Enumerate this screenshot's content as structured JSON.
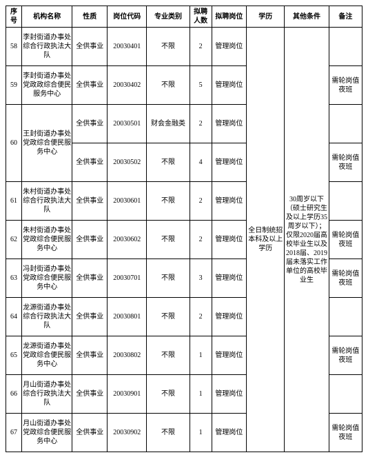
{
  "headers": {
    "seq": "序号",
    "org": "机构名称",
    "nature": "性质",
    "code": "岗位代码",
    "major": "专业类别",
    "num": "拟聘人数",
    "pos": "拟聘岗位",
    "edu": "学历",
    "other": "其他条件",
    "remark": "备注"
  },
  "edu_text": "全日制统招本科及以上学历",
  "other_text": "30周岁以下（硕士研究生及以上学历35周岁以下）；仅限2020届高校毕业生以及2018届、2019届未落实工作单位的高校毕业生",
  "rows": [
    {
      "seq": "58",
      "org": "李封街道办事处综合行政执法大队",
      "nature": "全供事业",
      "code": "20030401",
      "major": "不限",
      "num": "2",
      "pos": "管理岗位",
      "remark": ""
    },
    {
      "seq": "59",
      "org": "李封街道办事处党政政综合便民服务中心",
      "nature": "全供事业",
      "code": "20030402",
      "major": "不限",
      "num": "5",
      "pos": "管理岗位",
      "remark": "需轮岗值夜班"
    },
    {
      "seq": "60",
      "org": "王封街道办事处党政综合便民服务中心",
      "nature": "全供事业",
      "code": "20030501",
      "major": "财会金融类",
      "num": "2",
      "pos": "管理岗位",
      "remark": "",
      "merge_seq": true,
      "merge_org": true
    },
    {
      "seq": "",
      "org": "",
      "nature": "全供事业",
      "code": "20030502",
      "major": "不限",
      "num": "4",
      "pos": "管理岗位",
      "remark": "需轮岗值夜班"
    },
    {
      "seq": "61",
      "org": "朱村街道办事处综合行政执法大队",
      "nature": "全供事业",
      "code": "20030601",
      "major": "不限",
      "num": "2",
      "pos": "管理岗位",
      "remark": ""
    },
    {
      "seq": "62",
      "org": "朱村街道办事处党政综合便民服务中心",
      "nature": "全供事业",
      "code": "20030602",
      "major": "不限",
      "num": "2",
      "pos": "管理岗位",
      "remark": "需轮岗值夜班"
    },
    {
      "seq": "63",
      "org": "冯封街道办事处党政综合便民服务中心",
      "nature": "全供事业",
      "code": "20030701",
      "major": "不限",
      "num": "3",
      "pos": "管理岗位",
      "remark": "需轮岗值夜班"
    },
    {
      "seq": "64",
      "org": "龙源街道办事处综合行政执法大队",
      "nature": "全供事业",
      "code": "20030801",
      "major": "不限",
      "num": "2",
      "pos": "管理岗位",
      "remark": ""
    },
    {
      "seq": "65",
      "org": "龙源街道办事处党政综合便民服务中心",
      "nature": "全供事业",
      "code": "20030802",
      "major": "不限",
      "num": "1",
      "pos": "管理岗位",
      "remark": "需轮岗值夜班"
    },
    {
      "seq": "66",
      "org": "月山街道办事处综合行政执法大队",
      "nature": "全供事业",
      "code": "20030901",
      "major": "不限",
      "num": "1",
      "pos": "管理岗位",
      "remark": ""
    },
    {
      "seq": "67",
      "org": "月山街道办事处党政综合便民服务中心",
      "nature": "全供事业",
      "code": "20030902",
      "major": "不限",
      "num": "1",
      "pos": "管理岗位",
      "remark": "需轮岗值夜班"
    }
  ]
}
